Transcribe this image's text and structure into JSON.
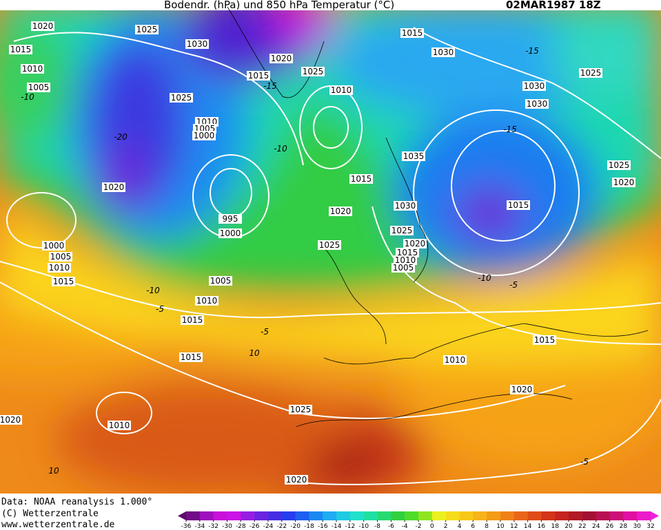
{
  "header": {
    "title": "Bodendr. (hPa) und 850 hPa Temperatur (°C)",
    "date": "02MAR1987 18Z"
  },
  "footer": {
    "lines": [
      "Data: NOAA reanalysis 1.000°",
      "(C) Wetterzentrale",
      "www.wetterzentrale.de"
    ]
  },
  "colorbar": {
    "ticks": [
      -36,
      -34,
      -32,
      -30,
      -28,
      -26,
      -24,
      -22,
      -20,
      -18,
      -16,
      -14,
      -12,
      -10,
      -8,
      -6,
      -4,
      -2,
      0,
      2,
      4,
      6,
      8,
      10,
      12,
      14,
      16,
      18,
      20,
      22,
      24,
      26,
      28,
      30,
      32
    ]
  },
  "isobar_labels": [
    "1020",
    "1025",
    "1015",
    "1030",
    "1010",
    "1005",
    "1015",
    "1020",
    "1025",
    "1025",
    "1010",
    "1005",
    "1000",
    "1020",
    "995",
    "1000",
    "1000",
    "1005",
    "1010",
    "1015",
    "1005",
    "1010",
    "1015",
    "1015",
    "1020",
    "1010",
    "1025",
    "1020",
    "1015",
    "1030",
    "1010",
    "1025",
    "1030",
    "1030",
    "1035",
    "1015",
    "1020",
    "1030",
    "1025",
    "1025",
    "1020",
    "1015",
    "1010",
    "1005",
    "1015",
    "1025",
    "1020",
    "1015",
    "1010",
    "1020"
  ],
  "temperature_labels": [
    "-10",
    "-20",
    "-15",
    "-10",
    "-15",
    "-15",
    "-10",
    "-5",
    "-5",
    "10",
    "10",
    "-5",
    "-10",
    "-5"
  ]
}
